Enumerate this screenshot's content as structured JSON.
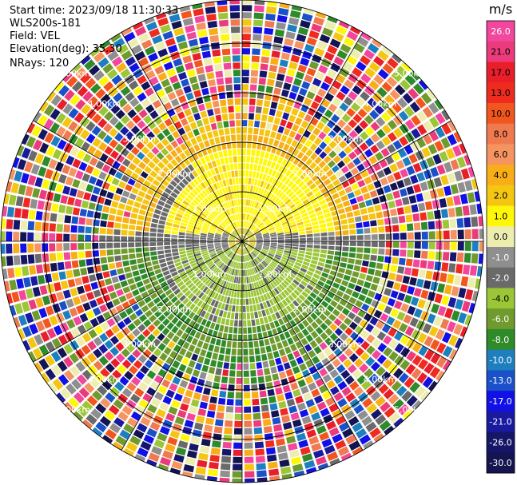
{
  "header": {
    "start_time": "Start time: 2023/09/18 11:30:33",
    "instrument": "WLS200s-181",
    "field": "Field: VEL",
    "elevation": "Elevation(deg): 35.30",
    "nrays": "NRays: 120"
  },
  "colorbar": {
    "unit": "m/s",
    "ticks": [
      "26.0",
      "21.0",
      "17.0",
      "13.0",
      "10.0",
      "8.0",
      "6.0",
      "4.0",
      "2.0",
      "1.0",
      "0.0",
      "-1.0",
      "-2.0",
      "-4.0",
      "-6.0",
      "-8.0",
      "-10.0",
      "-13.0",
      "-17.0",
      "-21.0",
      "-26.0",
      "-30.0"
    ],
    "colors": [
      "#f2479c",
      "#ec3b7c",
      "#e81f2a",
      "#ef2b1f",
      "#f2561f",
      "#f07a50",
      "#f59460",
      "#f7ae18",
      "#f4c612",
      "#fff70a",
      "#ededb0",
      "#8f8f8f",
      "#6a6a6a",
      "#9bc637",
      "#6f9a2e",
      "#2f8a2a",
      "#1e7fbf",
      "#1a50c8",
      "#1111e6",
      "#1a1aa0",
      "#161668",
      "#141450"
    ]
  },
  "chart_data": {
    "type": "heatmap",
    "projection": "polar PPI",
    "field": "VEL",
    "units": "m/s",
    "nrays": 120,
    "range_rings_labels": [
      "1.00km",
      "2.00km",
      "3.00km",
      "4.00km",
      "5.00km"
    ],
    "vlim": [
      -30.0,
      26.0
    ],
    "grid": true
  }
}
